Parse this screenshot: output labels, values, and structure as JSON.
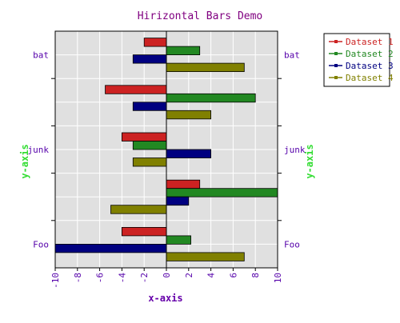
{
  "chart_data": {
    "type": "bar",
    "orientation": "horizontal",
    "title": "Hirizontal Bars Demo",
    "xlabel": "x-axis",
    "ylabel": "y-axis",
    "xlim": [
      -10,
      10
    ],
    "xticks": [
      -10,
      -8,
      -6,
      -4,
      -2,
      0,
      2,
      4,
      6,
      8,
      10
    ],
    "categories": [
      "Foo",
      "",
      "junk",
      "",
      "bat"
    ],
    "series": [
      {
        "name": "Dataset 1",
        "color": "#cc2222",
        "values": [
          -4,
          3,
          -4,
          -5.5,
          -2
        ]
      },
      {
        "name": "Dataset 2",
        "color": "#228822",
        "values": [
          2.2,
          10,
          -3,
          8,
          3
        ]
      },
      {
        "name": "Dataset 3",
        "color": "#000080",
        "values": [
          -10,
          2,
          4,
          -3,
          -3
        ]
      },
      {
        "name": "Dataset 4",
        "color": "#808000",
        "values": [
          7,
          -5,
          -3,
          4,
          7
        ]
      }
    ],
    "grid": true,
    "legend_position": "top-right",
    "colors": {
      "title": "#800080",
      "tick_labels": "#5500aa",
      "axis_label_x": "#6600aa",
      "axis_label_y": "#33dd33",
      "plot_background": "#e0e0e0",
      "grid": "#ffffff"
    }
  }
}
